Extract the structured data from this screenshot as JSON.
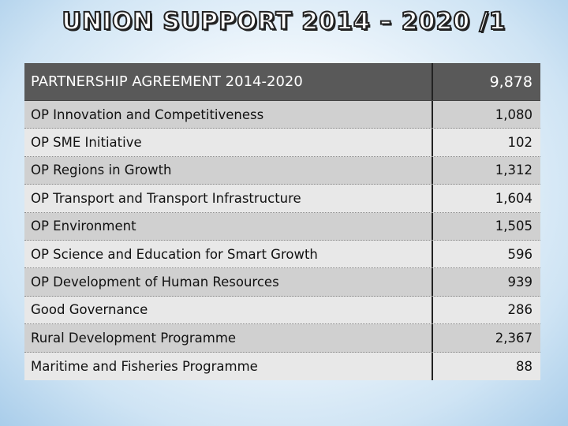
{
  "title": "UNION SUPPORT 2014 – 2020 /1",
  "header": {
    "label": "PARTNERSHIP AGREEMENT 2014-2020",
    "value": "9,878"
  },
  "rows": [
    {
      "label": "OP Innovation and Competitiveness",
      "value": "1,080"
    },
    {
      "label": "OP SME Initiative",
      "value": "102"
    },
    {
      "label": "OP Regions in Growth",
      "value": "1,312"
    },
    {
      "label": "OP Transport and Transport Infrastructure",
      "value": "1,604"
    },
    {
      "label": "OP Environment",
      "value": "1,505"
    },
    {
      "label": "OP Science and Education for Smart Growth",
      "value": "596"
    },
    {
      "label": "OP Development of Human Resources",
      "value": "939"
    },
    {
      "label": "Good Governance",
      "value": "286"
    },
    {
      "label": "Rural Development Programme",
      "value": "2,367"
    },
    {
      "label": "Maritime and Fisheries Programme",
      "value": "88"
    }
  ]
}
